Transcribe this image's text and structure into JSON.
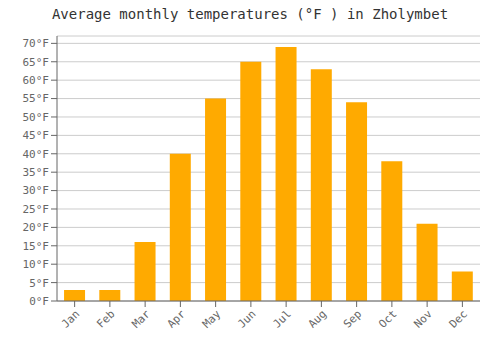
{
  "chart_data": {
    "type": "bar",
    "title": "Average monthly temperatures (°F ) in Zholymbet",
    "categories": [
      "Jan",
      "Feb",
      "Mar",
      "Apr",
      "May",
      "Jun",
      "Jul",
      "Aug",
      "Sep",
      "Oct",
      "Nov",
      "Dec"
    ],
    "values": [
      3,
      3,
      16,
      40,
      55,
      65,
      69,
      63,
      54,
      38,
      21,
      8
    ],
    "color": "#FFAA00",
    "ylim": [
      0,
      72
    ],
    "yticks": [
      {
        "value": 0,
        "label": "0°F"
      },
      {
        "value": 5,
        "label": "5°F"
      },
      {
        "value": 10,
        "label": "10°F"
      },
      {
        "value": 15,
        "label": "15°F"
      },
      {
        "value": 20,
        "label": "20°F"
      },
      {
        "value": 25,
        "label": "25°F"
      },
      {
        "value": 30,
        "label": "30°F"
      },
      {
        "value": 35,
        "label": "35°F"
      },
      {
        "value": 40,
        "label": "40°F"
      },
      {
        "value": 45,
        "label": "45°F"
      },
      {
        "value": 50,
        "label": "50°F"
      },
      {
        "value": 55,
        "label": "55°F"
      },
      {
        "value": 60,
        "label": "60°F"
      },
      {
        "value": 65,
        "label": "65°F"
      },
      {
        "value": 70,
        "label": "70°F"
      }
    ],
    "grid": true
  }
}
